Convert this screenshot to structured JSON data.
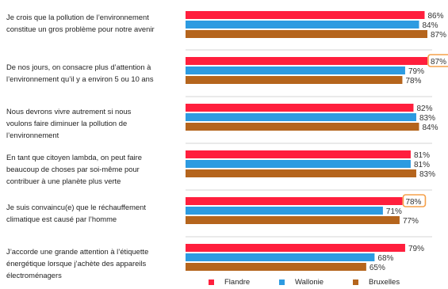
{
  "colors": {
    "flandre": "#ff1f3d",
    "wallonie": "#2d9be1",
    "bruxelles": "#b5651d",
    "highlight": "#f5a04a",
    "separator": "#c8c8c8"
  },
  "chart_data": {
    "type": "bar",
    "orientation": "horizontal",
    "categories": [
      "Je crois que la pollution de l’environnement constitue un gros problème pour notre avenir",
      "De nos jours, on consacre plus d’attention à l’environnement qu’il y a environ 5 ou 10 ans",
      "Nous devrons vivre autrement si nous voulons faire diminuer la pollution de l’environnement",
      "En tant que citoyen lambda, on peut faire beaucoup de choses par soi-même pour contribuer à une planète plus verte",
      "Je suis convaincu(e) que le réchauffement climatique est causé par l’homme",
      "J’accorde une grande attention à l’étiquette énergétique lorsque j’achète des appareils électroménagers"
    ],
    "series": [
      {
        "name": "Flandre",
        "values": [
          86,
          87,
          82,
          81,
          78,
          79
        ],
        "labels": [
          "86%",
          "87%",
          "82%",
          "81%",
          "78%",
          "79%"
        ]
      },
      {
        "name": "Wallonie",
        "values": [
          84,
          79,
          83,
          81,
          71,
          68
        ],
        "labels": [
          "84%",
          "79%",
          "83%",
          "81%",
          "71%",
          "68%"
        ]
      },
      {
        "name": "Bruxelles",
        "values": [
          87,
          78,
          84,
          83,
          77,
          65
        ],
        "labels": [
          "87%",
          "78%",
          "84%",
          "83%",
          "77%",
          "65%"
        ]
      }
    ],
    "highlighted": [
      {
        "category_index": 1,
        "series": "Flandre"
      },
      {
        "category_index": 4,
        "series": "Flandre"
      }
    ],
    "legend_position": "bottom",
    "grid": false
  },
  "questions": [
    "Je crois que la pollution de l’environnement\nconstitue un gros problème pour notre avenir",
    "De nos jours, on consacre plus d’attention à\nl’environnement qu’il y a environ 5 ou 10 ans",
    "Nous devrons vivre autrement si nous\nvoulons faire diminuer la pollution de\nl’environnement",
    "En tant que citoyen lambda, on peut faire\nbeaucoup de choses par soi-même pour\ncontribuer à une planète plus verte",
    "Je suis convaincu(e) que le réchauffement\nclimatique est causé par l’homme",
    "J’accorde une grande attention à l’étiquette\nénergétique lorsque j’achète des appareils\nélectroménagers"
  ],
  "legend": [
    "Flandre",
    "Wallonie",
    "Bruxelles"
  ]
}
